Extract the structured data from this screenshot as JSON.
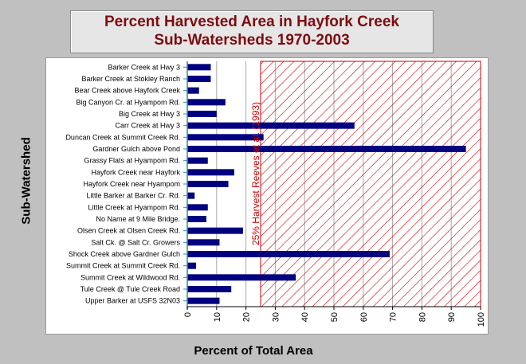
{
  "chart_data": {
    "type": "bar",
    "orientation": "horizontal",
    "title": "Percent Harvested Area in Hayfork Creek Sub-Watersheds 1970-2003",
    "title_lines": [
      "Percent Harvested Area in Hayfork Creek",
      "Sub-Watersheds 1970-2003"
    ],
    "xlabel": "Percent of Total Area",
    "ylabel": "Sub-Watershed",
    "xlim": [
      0,
      100
    ],
    "xticks": [
      0,
      10,
      20,
      30,
      40,
      50,
      60,
      70,
      80,
      90,
      100
    ],
    "grid": true,
    "categories": [
      "Barker Creek at Hwy 3",
      "Barker Creek at Stokley Ranch",
      "Bear Creek above Hayfork Creek",
      "Big Canyon Cr. at Hyampom Rd.",
      "Big Creek at Hwy 3",
      "Carr Creek at Hwy 3",
      "Duncan Creek at Summit Creek Rd.",
      "Gardner Gulch above Pond",
      "Grassy Flats at Hyampom Rd.",
      "Hayfork Creek near Hayfork",
      "Hayfork Creek near Hyampom",
      "Little Barker at Barker Cr. Rd.",
      "Little Creek at Hyampom Rd.",
      "No Name at 9 Mile Bridge.",
      "Olsen Creek at Olsen Creek Rd.",
      "Salt Ck. @ Salt Cr. Growers",
      "Shock Creek above Gardner Gulch",
      "Summit Creek at Summit Creek Rd.",
      "Summit Creek at Wildwood Rd.",
      "Tule Creek @ Tule Creek Road",
      "Upper Barker at USFS 32N03"
    ],
    "values": [
      8,
      8,
      4,
      13,
      10,
      57,
      26,
      95,
      7,
      16,
      14,
      2.5,
      7,
      6.5,
      19,
      11,
      69,
      3,
      37,
      15,
      11
    ],
    "threshold": {
      "value": 25,
      "label": "25% Harvest Reeves et al. (1993)",
      "range": [
        25,
        100
      ]
    },
    "colors": {
      "bar": "#000080",
      "threshold": "#cc0000",
      "title": "#7d0c10",
      "grid": "#a8a8a8",
      "axis": "#2f8f8f"
    }
  }
}
